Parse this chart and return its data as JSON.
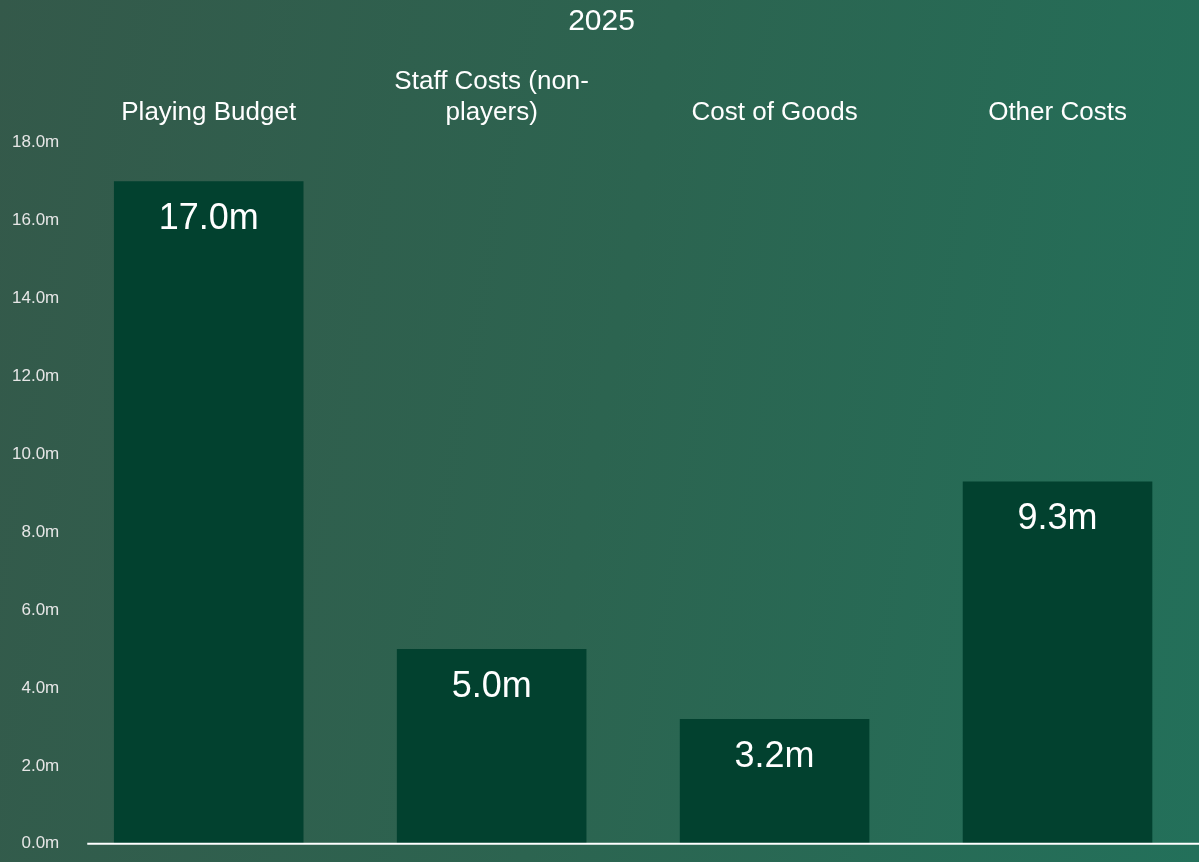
{
  "chart_data": {
    "type": "bar",
    "title": "2025",
    "categories": [
      "Playing Budget",
      "Staff Costs (non-players)",
      "Cost of Goods",
      "Other Costs"
    ],
    "values": [
      17.0,
      5.0,
      3.2,
      9.3
    ],
    "value_labels": [
      "17.0m",
      "5.0m",
      "3.2m",
      "9.3m"
    ],
    "color": "#02412f",
    "ylim": [
      0,
      18
    ],
    "yticks": [
      {
        "value": 0,
        "label": "0.0m"
      },
      {
        "value": 2,
        "label": "2.0m"
      },
      {
        "value": 4,
        "label": "4.0m"
      },
      {
        "value": 6,
        "label": "6.0m"
      },
      {
        "value": 8,
        "label": "8.0m"
      },
      {
        "value": 10,
        "label": "10.0m"
      },
      {
        "value": 12,
        "label": "12.0m"
      },
      {
        "value": 14,
        "label": "14.0m"
      },
      {
        "value": 16,
        "label": "16.0m"
      },
      {
        "value": 18,
        "label": "18.0m"
      }
    ],
    "grid": false,
    "legend": false
  }
}
